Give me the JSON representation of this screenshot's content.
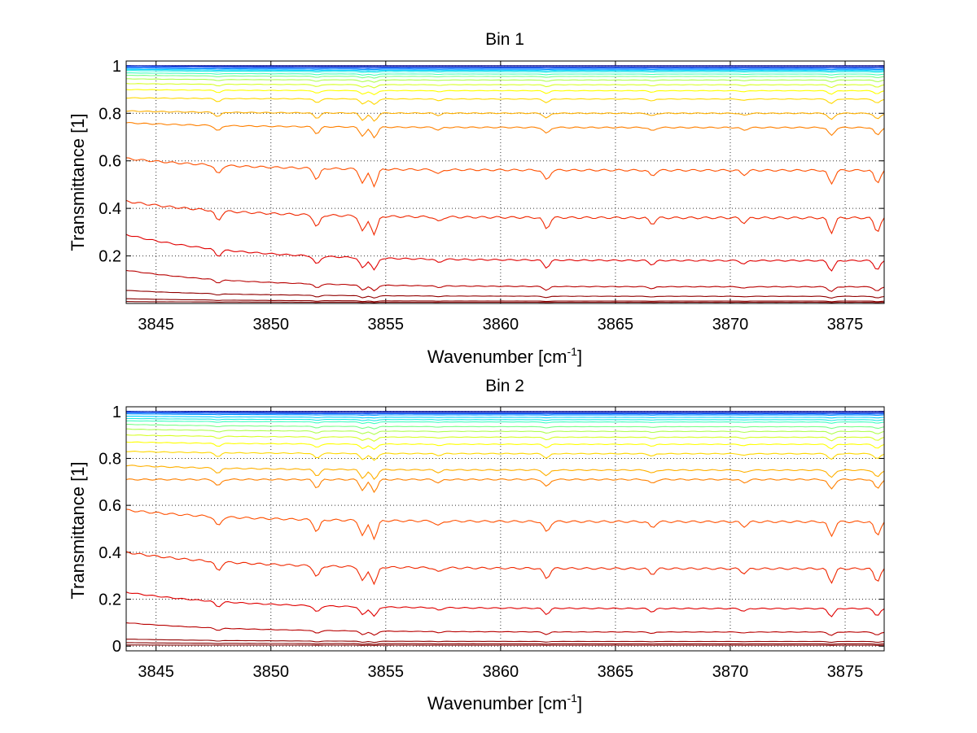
{
  "chart_data": [
    {
      "type": "line",
      "title": "Bin 1",
      "xlabel": "Wavenumber [cm",
      "xlabel_sup": "-1",
      "xlabel_tail": "]",
      "ylabel": "Transmittance [1]",
      "xlim": [
        3843.7,
        3876.7
      ],
      "ylim": [
        0,
        1.02
      ],
      "xticks": [
        3845,
        3850,
        3855,
        3860,
        3865,
        3870,
        3875
      ],
      "xtick_labels": [
        "3845",
        "3850",
        "3855",
        "3860",
        "3865",
        "3870",
        "3875"
      ],
      "yticks": [
        0.2,
        0.4,
        0.6,
        0.8,
        1
      ],
      "ytick_labels": [
        "0.2",
        "0.4",
        "0.6",
        "0.8",
        "1"
      ],
      "grid": true,
      "colormap": [
        "#00008f",
        "#0050ff",
        "#00d0ff",
        "#40ffbf",
        "#b0ff50",
        "#ffff00",
        "#ffb000",
        "#ff5000",
        "#e00000",
        "#900000",
        "#800000"
      ],
      "series": [
        {
          "level_start": 1.0,
          "level_end": 1.0
        },
        {
          "level_start": 1.0,
          "level_end": 0.995
        },
        {
          "level_start": 0.995,
          "level_end": 0.99
        },
        {
          "level_start": 0.99,
          "level_end": 0.985
        },
        {
          "level_start": 0.985,
          "level_end": 0.98
        },
        {
          "level_start": 0.98,
          "level_end": 0.975
        },
        {
          "level_start": 0.97,
          "level_end": 0.965
        },
        {
          "level_start": 0.96,
          "level_end": 0.955
        },
        {
          "level_start": 0.945,
          "level_end": 0.94
        },
        {
          "level_start": 0.925,
          "level_end": 0.92
        },
        {
          "level_start": 0.9,
          "level_end": 0.895
        },
        {
          "level_start": 0.865,
          "level_end": 0.86
        },
        {
          "level_start": 0.81,
          "level_end": 0.8
        },
        {
          "level_start": 0.76,
          "level_end": 0.74
        },
        {
          "level_start": 0.61,
          "level_end": 0.56
        },
        {
          "level_start": 0.43,
          "level_end": 0.36
        },
        {
          "level_start": 0.29,
          "level_end": 0.18
        },
        {
          "level_start": 0.14,
          "level_end": 0.07
        },
        {
          "level_start": 0.055,
          "level_end": 0.03
        },
        {
          "level_start": 0.02,
          "level_end": 0.01
        },
        {
          "level_start": 0.008,
          "level_end": 0.005
        }
      ]
    },
    {
      "type": "line",
      "title": "Bin 2",
      "xlabel": "Wavenumber [cm",
      "xlabel_sup": "-1",
      "xlabel_tail": "]",
      "ylabel": "Transmittance [1]",
      "xlim": [
        3843.7,
        3876.7
      ],
      "ylim": [
        -0.02,
        1.02
      ],
      "xticks": [
        3845,
        3850,
        3855,
        3860,
        3865,
        3870,
        3875
      ],
      "xtick_labels": [
        "3845",
        "3850",
        "3855",
        "3860",
        "3865",
        "3870",
        "3875"
      ],
      "yticks": [
        0,
        0.2,
        0.4,
        0.6,
        0.8,
        1
      ],
      "ytick_labels": [
        "0",
        "0.2",
        "0.4",
        "0.6",
        "0.8",
        "1"
      ],
      "grid": true,
      "colormap": [
        "#00008f",
        "#0050ff",
        "#00d0ff",
        "#40ffbf",
        "#b0ff50",
        "#ffff00",
        "#ffb000",
        "#ff5000",
        "#e00000",
        "#900000",
        "#800000"
      ],
      "series": [
        {
          "level_start": 1.0,
          "level_end": 1.0
        },
        {
          "level_start": 1.0,
          "level_end": 0.995
        },
        {
          "level_start": 0.995,
          "level_end": 0.99
        },
        {
          "level_start": 0.99,
          "level_end": 0.985
        },
        {
          "level_start": 0.98,
          "level_end": 0.975
        },
        {
          "level_start": 0.97,
          "level_end": 0.965
        },
        {
          "level_start": 0.96,
          "level_end": 0.955
        },
        {
          "level_start": 0.945,
          "level_end": 0.935
        },
        {
          "level_start": 0.925,
          "level_end": 0.915
        },
        {
          "level_start": 0.9,
          "level_end": 0.89
        },
        {
          "level_start": 0.87,
          "level_end": 0.86
        },
        {
          "level_start": 0.83,
          "level_end": 0.82
        },
        {
          "level_start": 0.77,
          "level_end": 0.75
        },
        {
          "level_start": 0.71,
          "level_end": 0.71
        },
        {
          "level_start": 0.58,
          "level_end": 0.53
        },
        {
          "level_start": 0.4,
          "level_end": 0.33
        },
        {
          "level_start": 0.23,
          "level_end": 0.16
        },
        {
          "level_start": 0.1,
          "level_end": 0.06
        },
        {
          "level_start": 0.03,
          "level_end": 0.02
        },
        {
          "level_start": 0.015,
          "level_end": 0.01
        },
        {
          "level_start": 0.005,
          "level_end": 0.004
        }
      ]
    }
  ]
}
